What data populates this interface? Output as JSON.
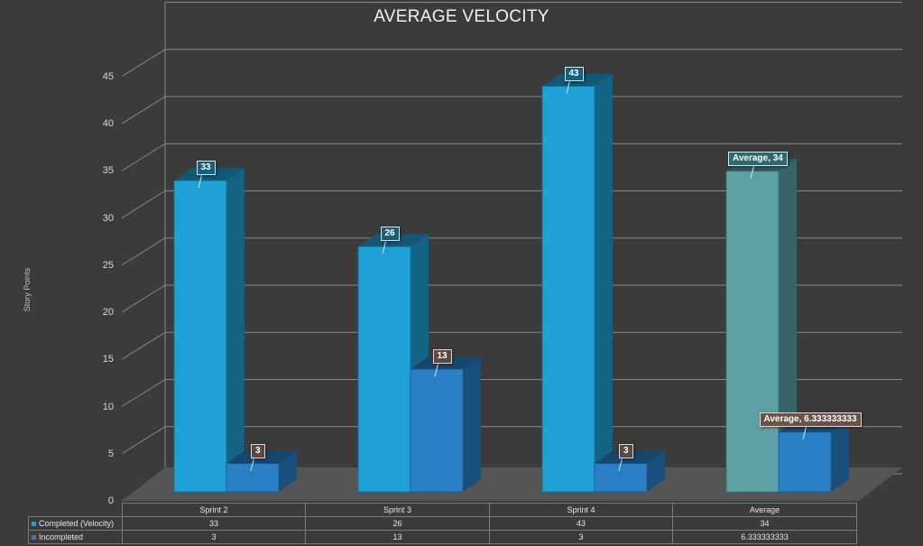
{
  "chart_data": {
    "type": "bar",
    "title": "AVERAGE VELOCITY",
    "ylabel": "Story Points",
    "xlabel": "",
    "ylim": [
      0,
      45
    ],
    "yticks": [
      0,
      5,
      10,
      15,
      20,
      25,
      30,
      35,
      40,
      45
    ],
    "grid": true,
    "legend_placement": "data table",
    "categories": [
      "Sprint 2",
      "Sprint 3",
      "Sprint 4",
      "Average"
    ],
    "series": [
      {
        "name": "Completed (Velocity)",
        "color": "#1fa0d6",
        "values": [
          33,
          26,
          43,
          34
        ],
        "labels": [
          "33",
          "26",
          "43",
          "Average, 34"
        ],
        "table_values": [
          "33",
          "26",
          "43",
          "34"
        ]
      },
      {
        "name": "Incompleted",
        "color": "#2a7fc6",
        "values": [
          3,
          13,
          3,
          6.333333333
        ],
        "labels": [
          "3",
          "13",
          "3",
          "Average, 6.333333333"
        ],
        "table_values": [
          "3",
          "13",
          "3",
          "6.333333333"
        ]
      }
    ],
    "average_bar_color": "#5ca1a3"
  }
}
